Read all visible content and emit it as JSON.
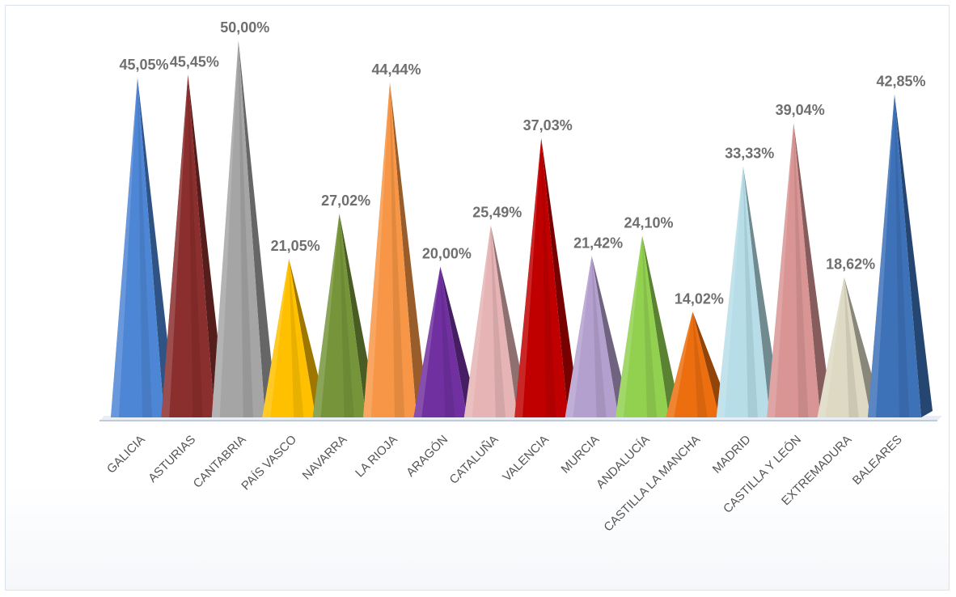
{
  "chart_data": {
    "type": "bar",
    "shape": "pyramid",
    "title": "",
    "xlabel": "",
    "ylabel": "",
    "ylim": [
      0,
      50
    ],
    "grid": false,
    "legend": "none",
    "categories": [
      "GALICIA",
      "ASTURIAS",
      "CANTABRIA",
      "PAÍS VASCO",
      "NAVARRA",
      "LA RIOJA",
      "ARAGÓN",
      "CATALUÑA",
      "VALENCIA",
      "MURCIA",
      "ANDALUCÍA",
      "CASTILLA LA MANCHA",
      "MADRID",
      "CASTILLA Y LEÓN",
      "EXTREMADURA",
      "BALEARES"
    ],
    "values": [
      45.05,
      45.45,
      50.0,
      21.05,
      27.02,
      44.44,
      20.0,
      25.49,
      37.03,
      21.42,
      24.1,
      14.02,
      33.33,
      39.04,
      18.62,
      42.85
    ],
    "data_labels": [
      "45,05%",
      "45,45%",
      "50,00%",
      "21,05%",
      "27,02%",
      "44,44%",
      "20,00%",
      "25,49%",
      "37,03%",
      "21,42%",
      "24,10%",
      "14,02%",
      "33,33%",
      "39,04%",
      "18,62%",
      "42,85%"
    ],
    "colors": [
      "#4e86d6",
      "#8b2e2e",
      "#a5a5a5",
      "#ffc000",
      "#76953a",
      "#f79646",
      "#7030a0",
      "#e6b4b5",
      "#c00000",
      "#b4a0cf",
      "#92d050",
      "#ec6e0f",
      "#b7dee8",
      "#d99594",
      "#ddd9c3",
      "#3d71b8"
    ],
    "axis_color": "#c0cbd9"
  }
}
